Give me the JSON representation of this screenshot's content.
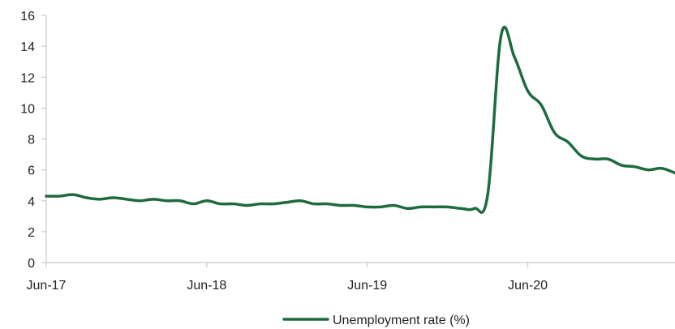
{
  "chart_data": {
    "type": "line",
    "title": "",
    "xlabel": "",
    "ylabel": "",
    "x_tick_labels": [
      "Jun-17",
      "Jun-18",
      "Jun-19",
      "Jun-20"
    ],
    "x_range": [
      "2017-06",
      "2021-05"
    ],
    "ylim": [
      0,
      16
    ],
    "y_ticks": [
      0,
      2,
      4,
      6,
      8,
      10,
      12,
      14,
      16
    ],
    "grid": false,
    "legend_position": "bottom-center",
    "series": [
      {
        "name": "Unemployment rate (%)",
        "color": "#1e6b3f",
        "points": [
          [
            "2017-06",
            4.3
          ],
          [
            "2017-07",
            4.3
          ],
          [
            "2017-08",
            4.4
          ],
          [
            "2017-09",
            4.2
          ],
          [
            "2017-10",
            4.1
          ],
          [
            "2017-11",
            4.2
          ],
          [
            "2017-12",
            4.1
          ],
          [
            "2018-01",
            4.0
          ],
          [
            "2018-02",
            4.1
          ],
          [
            "2018-03",
            4.0
          ],
          [
            "2018-04",
            4.0
          ],
          [
            "2018-05",
            3.8
          ],
          [
            "2018-06",
            4.0
          ],
          [
            "2018-07",
            3.8
          ],
          [
            "2018-08",
            3.8
          ],
          [
            "2018-09",
            3.7
          ],
          [
            "2018-10",
            3.8
          ],
          [
            "2018-11",
            3.8
          ],
          [
            "2018-12",
            3.9
          ],
          [
            "2019-01",
            4.0
          ],
          [
            "2019-02",
            3.8
          ],
          [
            "2019-03",
            3.8
          ],
          [
            "2019-04",
            3.7
          ],
          [
            "2019-05",
            3.7
          ],
          [
            "2019-06",
            3.6
          ],
          [
            "2019-07",
            3.6
          ],
          [
            "2019-08",
            3.7
          ],
          [
            "2019-09",
            3.5
          ],
          [
            "2019-10",
            3.6
          ],
          [
            "2019-11",
            3.6
          ],
          [
            "2019-12",
            3.6
          ],
          [
            "2020-01",
            3.5
          ],
          [
            "2020-02",
            3.5
          ],
          [
            "2020-03",
            4.4
          ],
          [
            "2020-04",
            14.7
          ],
          [
            "2020-05",
            13.3
          ],
          [
            "2020-06",
            11.1
          ],
          [
            "2020-07",
            10.2
          ],
          [
            "2020-08",
            8.4
          ],
          [
            "2020-09",
            7.8
          ],
          [
            "2020-10",
            6.9
          ],
          [
            "2020-11",
            6.7
          ],
          [
            "2020-12",
            6.7
          ],
          [
            "2021-01",
            6.3
          ],
          [
            "2021-02",
            6.2
          ],
          [
            "2021-03",
            6.0
          ],
          [
            "2021-04",
            6.1
          ],
          [
            "2021-05",
            5.8
          ]
        ]
      }
    ]
  }
}
